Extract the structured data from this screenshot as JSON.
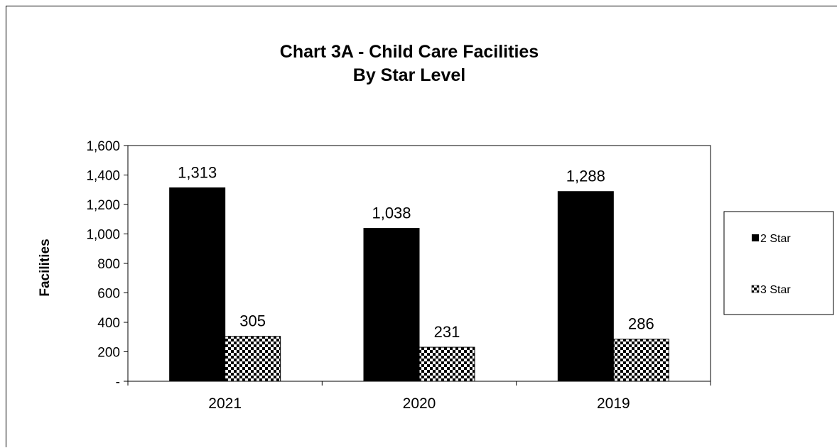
{
  "chart_data": {
    "type": "bar",
    "title": "Chart 3A - Child Care Facilities",
    "subtitle": "By Star Level",
    "xlabel": "",
    "ylabel": "Facilities",
    "categories": [
      "2021",
      "2020",
      "2019"
    ],
    "series": [
      {
        "name": "2 Star",
        "values": [
          1313,
          1038,
          1288
        ],
        "data_labels": [
          "1,313",
          "1,038",
          "1,288"
        ],
        "fill": "solid",
        "color": "#000000"
      },
      {
        "name": "3 Star",
        "values": [
          305,
          231,
          286
        ],
        "data_labels": [
          "305",
          "231",
          "286"
        ],
        "fill": "checkerboard",
        "color": "#000000"
      }
    ],
    "ylim": [
      0,
      1600
    ],
    "yticks": [
      0,
      200,
      400,
      600,
      800,
      1000,
      1200,
      1400,
      1600
    ],
    "ytick_labels": [
      "-",
      "200",
      "400",
      "600",
      "800",
      "1,000",
      "1,200",
      "1,400",
      "1,600"
    ],
    "grid": false,
    "legend_position": "right"
  }
}
